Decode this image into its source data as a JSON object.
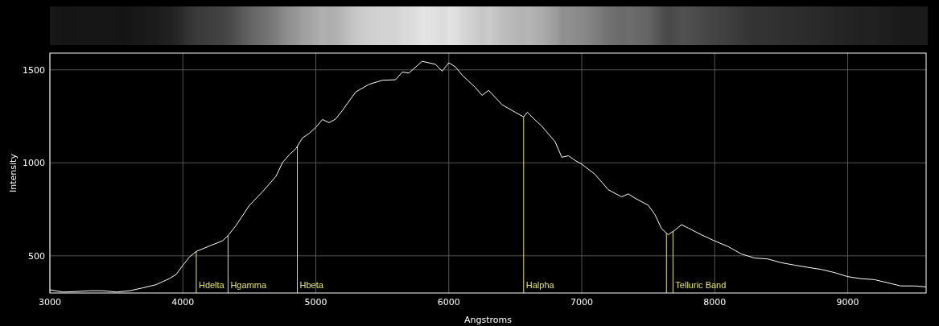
{
  "chart_data": {
    "type": "line",
    "xlabel": "Angstroms",
    "ylabel": "Intensity",
    "xlim": [
      3000,
      9590
    ],
    "ylim": [
      300,
      1590
    ],
    "xticks": [
      3000,
      4000,
      5000,
      6000,
      7000,
      8000,
      9000
    ],
    "yticks": [
      500,
      1000,
      1500
    ],
    "grid": true,
    "marker": "none",
    "line_style": "solid",
    "series": [
      {
        "color": "#ffffff",
        "x": [
          3000,
          3100,
          3200,
          3300,
          3400,
          3500,
          3600,
          3700,
          3800,
          3900,
          3950,
          4000,
          4050,
          4100,
          4200,
          4300,
          4340,
          4400,
          4500,
          4600,
          4700,
          4750,
          4800,
          4850,
          4900,
          4950,
          5000,
          5050,
          5100,
          5150,
          5200,
          5300,
          5400,
          5500,
          5600,
          5650,
          5700,
          5800,
          5900,
          5950,
          6000,
          6050,
          6100,
          6200,
          6250,
          6300,
          6400,
          6500,
          6563,
          6590,
          6650,
          6700,
          6800,
          6850,
          6900,
          6950,
          7000,
          7100,
          7200,
          7300,
          7350,
          7400,
          7500,
          7550,
          7600,
          7650,
          7700,
          7750,
          7800,
          7900,
          8000,
          8100,
          8200,
          8300,
          8400,
          8500,
          8600,
          8700,
          8800,
          8900,
          9000,
          9100,
          9200,
          9300,
          9400,
          9500,
          9590
        ],
        "values": [
          317,
          305,
          308,
          312,
          312,
          305,
          312,
          328,
          345,
          378,
          400,
          449,
          494,
          523,
          553,
          581,
          609,
          663,
          771,
          845,
          927,
          1002,
          1043,
          1076,
          1134,
          1158,
          1191,
          1233,
          1216,
          1236,
          1282,
          1381,
          1422,
          1444,
          1447,
          1488,
          1483,
          1546,
          1530,
          1493,
          1538,
          1516,
          1472,
          1405,
          1363,
          1390,
          1313,
          1272,
          1247,
          1272,
          1230,
          1197,
          1113,
          1030,
          1038,
          1013,
          993,
          938,
          855,
          817,
          833,
          810,
          772,
          722,
          647,
          613,
          638,
          667,
          650,
          613,
          580,
          550,
          510,
          488,
          483,
          463,
          450,
          438,
          427,
          410,
          388,
          377,
          372,
          355,
          338,
          338,
          333
        ]
      }
    ],
    "ref_lines": [
      {
        "axis": "x",
        "value": 4101,
        "label": "Hdelta",
        "color": "#e6e65a"
      },
      {
        "axis": "x",
        "value": 4340,
        "label": "Hgamma",
        "color": "#e6e65a"
      },
      {
        "axis": "x",
        "value": 4861,
        "label": "Hbeta",
        "color": "#e6e65a"
      },
      {
        "axis": "x",
        "value": 6563,
        "label": "Halpha",
        "color": "#e6e65a"
      },
      {
        "axis": "x",
        "value": 7637,
        "color": "#e6e65a"
      },
      {
        "axis": "x",
        "value": 7686,
        "label": "Telluric Band",
        "color": "#e6e65a"
      }
    ]
  }
}
